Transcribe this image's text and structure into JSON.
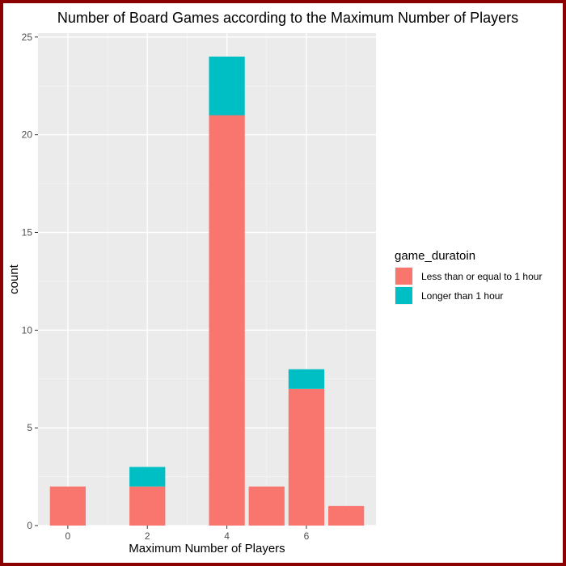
{
  "chart_data": {
    "type": "bar",
    "stacked": true,
    "title": "Number of Board Games according to the Maximum Number of Players",
    "xlabel": "Maximum Number of Players",
    "ylabel": "count",
    "x_ticks": [
      0,
      2,
      4,
      6
    ],
    "y_ticks": [
      0,
      5,
      10,
      15,
      20,
      25
    ],
    "xlim": [
      -0.75,
      7.75
    ],
    "ylim": [
      0,
      25.2
    ],
    "grid": true,
    "legend_position": "right",
    "legend_title": "game_duratoin",
    "categories": [
      0,
      2,
      4,
      5,
      6,
      7
    ],
    "series": [
      {
        "name": "Less than or equal to 1 hour",
        "color": "#F8766D",
        "values": [
          2,
          2,
          21,
          2,
          7,
          1
        ]
      },
      {
        "name": "Longer than 1 hour",
        "color": "#00BFC4",
        "values": [
          0,
          1,
          3,
          0,
          1,
          0
        ]
      }
    ],
    "colors": {
      "panel": "#EBEBEB",
      "grid_major": "#FFFFFF",
      "grid_minor": "#F5F5F5",
      "border": "#8B0000"
    }
  }
}
